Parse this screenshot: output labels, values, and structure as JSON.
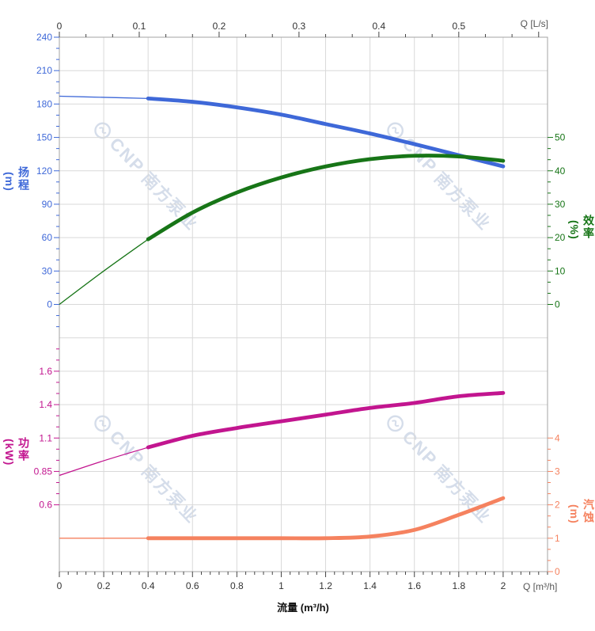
{
  "watermark": {
    "logo_text": "CNP",
    "brand_text": "南方泵业"
  },
  "axes": {
    "top": {
      "label": "Q [L/s]",
      "ticks": [
        "0",
        "0.1",
        "0.2",
        "0.3",
        "0.4",
        "0.5"
      ],
      "color": "#333333"
    },
    "bottom": {
      "label": "Q [m³/h]",
      "title": "流量 (m³/h)",
      "ticks": [
        "0",
        "0.2",
        "0.4",
        "0.6",
        "0.8",
        "1",
        "1.2",
        "1.4",
        "1.6",
        "1.8",
        "2"
      ],
      "color": "#333333"
    },
    "head": {
      "title": "扬程",
      "unit": "(m)",
      "color": "#3E68D8",
      "ticks": [
        "240",
        "210",
        "180",
        "150",
        "120",
        "90",
        "60",
        "30",
        "0"
      ]
    },
    "efficiency": {
      "title": "效率",
      "unit": "(%)",
      "color": "#177517",
      "ticks": [
        "50",
        "40",
        "30",
        "20",
        "10",
        "0"
      ]
    },
    "power": {
      "title": "功率",
      "unit": "(kW)",
      "color": "#C2158F",
      "ticks": [
        "1.6",
        "1.4",
        "1.1",
        "0.85",
        "0.6"
      ]
    },
    "npsh": {
      "title": "汽蚀",
      "unit": "(m)",
      "color": "#F5825F",
      "ticks": [
        "4",
        "3",
        "2",
        "1",
        "0"
      ]
    }
  },
  "chart_data": {
    "type": "line",
    "x_label_bottom": "流量 (m³/h)",
    "x_unit_bottom": "m³/h",
    "x_unit_top": "L/s",
    "xlim_bottom": [
      0,
      2.2
    ],
    "xlim_top_shown": [
      0,
      0.5
    ],
    "grid": true,
    "x": [
      0,
      0.2,
      0.4,
      0.6,
      0.8,
      1.0,
      1.2,
      1.4,
      1.6,
      1.8,
      2.0
    ],
    "thick_from_x": 0.4,
    "series": [
      {
        "name": "扬程",
        "axis": "head",
        "unit": "m",
        "color": "#3E68D8",
        "values": [
          187,
          186,
          185,
          182,
          177,
          170.5,
          162,
          153.5,
          144,
          134,
          124
        ]
      },
      {
        "name": "效率",
        "axis": "efficiency",
        "unit": "%",
        "color": "#177517",
        "values": [
          0,
          10,
          19.5,
          27.5,
          33.5,
          38,
          41.3,
          43.5,
          44.5,
          44.3,
          43
        ]
      },
      {
        "name": "功率",
        "axis": "power",
        "unit": "kW",
        "color": "#C2158F",
        "values": [
          0.82,
          0.93,
          1.03,
          1.12,
          1.19,
          1.25,
          1.31,
          1.37,
          1.41,
          1.45,
          1.47
        ]
      },
      {
        "name": "汽蚀",
        "axis": "npsh",
        "unit": "m",
        "color": "#F5825F",
        "values": [
          1,
          1,
          1,
          1,
          1,
          1,
          1,
          1.05,
          1.25,
          1.7,
          2.2
        ]
      }
    ],
    "axis_ranges": {
      "head": [
        0,
        240
      ],
      "efficiency": [
        0,
        50
      ],
      "power_labels": [
        0.6,
        0.85,
        1.1,
        1.4,
        1.6
      ],
      "npsh": [
        0,
        4
      ]
    }
  }
}
